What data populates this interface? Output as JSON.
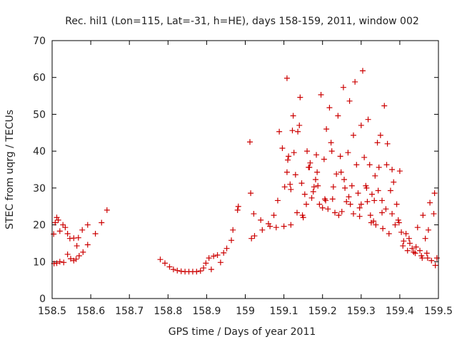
{
  "chart_data": {
    "type": "scatter",
    "title": "Rec. hil1 (Lon=115, Lat=-31, h=HE), days 158-159, 2011, window 002",
    "xlabel": "GPS time / Days of year 2011",
    "ylabel": "STEC from uqrg / TECUs",
    "xlim": [
      158.5,
      159.5
    ],
    "ylim": [
      0,
      70
    ],
    "x_ticks": [
      "158.5",
      "158.6",
      "158.7",
      "158.8",
      "158.9",
      "159",
      "159.1",
      "159.2",
      "159.3",
      "159.4",
      "159.5"
    ],
    "y_ticks": [
      "0",
      "10",
      "20",
      "30",
      "40",
      "50",
      "60",
      "70"
    ],
    "grid": false,
    "marker": "+",
    "color": "#cc0000",
    "points": [
      [
        158.504,
        17.5
      ],
      [
        158.508,
        20.6
      ],
      [
        158.512,
        22.0
      ],
      [
        158.516,
        21.3
      ],
      [
        158.52,
        18.3
      ],
      [
        158.528,
        20.0
      ],
      [
        158.534,
        19.3
      ],
      [
        158.54,
        17.6
      ],
      [
        158.546,
        16.3
      ],
      [
        158.556,
        16.4
      ],
      [
        158.564,
        14.3
      ],
      [
        158.568,
        16.5
      ],
      [
        158.578,
        18.6
      ],
      [
        158.592,
        20.0
      ],
      [
        158.612,
        17.6
      ],
      [
        158.628,
        20.6
      ],
      [
        158.642,
        24.0
      ],
      [
        158.505,
        9.5
      ],
      [
        158.512,
        9.6
      ],
      [
        158.52,
        10.0
      ],
      [
        158.53,
        9.8
      ],
      [
        158.54,
        12.0
      ],
      [
        158.548,
        10.8
      ],
      [
        158.556,
        10.3
      ],
      [
        158.562,
        10.7
      ],
      [
        158.57,
        11.6
      ],
      [
        158.58,
        12.6
      ],
      [
        158.592,
        14.6
      ],
      [
        158.78,
        10.6
      ],
      [
        158.792,
        9.6
      ],
      [
        158.804,
        8.6
      ],
      [
        158.814,
        7.9
      ],
      [
        158.824,
        7.6
      ],
      [
        158.834,
        7.4
      ],
      [
        158.844,
        7.3
      ],
      [
        158.854,
        7.3
      ],
      [
        158.864,
        7.3
      ],
      [
        158.874,
        7.3
      ],
      [
        158.884,
        7.5
      ],
      [
        158.892,
        8.3
      ],
      [
        158.898,
        9.6
      ],
      [
        158.906,
        11.0
      ],
      [
        158.912,
        7.9
      ],
      [
        158.918,
        11.5
      ],
      [
        158.928,
        11.8
      ],
      [
        158.936,
        9.8
      ],
      [
        158.944,
        12.4
      ],
      [
        158.952,
        13.6
      ],
      [
        158.964,
        15.8
      ],
      [
        158.968,
        18.6
      ],
      [
        158.98,
        24.0
      ],
      [
        158.982,
        25.0
      ],
      [
        159.012,
        42.5
      ],
      [
        159.014,
        28.6
      ],
      [
        159.016,
        16.3
      ],
      [
        159.022,
        23.0
      ],
      [
        159.024,
        17.0
      ],
      [
        159.04,
        21.3
      ],
      [
        159.044,
        18.6
      ],
      [
        159.06,
        20.3
      ],
      [
        159.064,
        19.6
      ],
      [
        159.074,
        22.6
      ],
      [
        159.08,
        19.3
      ],
      [
        159.084,
        26.6
      ],
      [
        159.088,
        45.3
      ],
      [
        159.096,
        40.8
      ],
      [
        159.1,
        19.6
      ],
      [
        159.108,
        59.8
      ],
      [
        159.11,
        37.6
      ],
      [
        159.112,
        38.6
      ],
      [
        159.116,
        31.0
      ],
      [
        159.118,
        20.0
      ],
      [
        159.122,
        45.6
      ],
      [
        159.124,
        49.6
      ],
      [
        159.126,
        39.6
      ],
      [
        159.13,
        33.6
      ],
      [
        159.136,
        45.3
      ],
      [
        159.14,
        47.0
      ],
      [
        159.142,
        54.6
      ],
      [
        159.146,
        31.3
      ],
      [
        159.148,
        22.6
      ],
      [
        159.154,
        28.3
      ],
      [
        159.158,
        25.6
      ],
      [
        159.16,
        40.0
      ],
      [
        159.164,
        35.6
      ],
      [
        159.168,
        36.8
      ],
      [
        159.172,
        27.3
      ],
      [
        159.176,
        29.0
      ],
      [
        159.178,
        30.3
      ],
      [
        159.182,
        32.3
      ],
      [
        159.186,
        34.3
      ],
      [
        159.188,
        30.6
      ],
      [
        159.192,
        25.6
      ],
      [
        159.196,
        55.3
      ],
      [
        159.2,
        24.6
      ],
      [
        159.204,
        37.8
      ],
      [
        159.206,
        27.0
      ],
      [
        159.21,
        46.0
      ],
      [
        159.214,
        24.3
      ],
      [
        159.218,
        51.8
      ],
      [
        159.222,
        42.3
      ],
      [
        159.224,
        40.0
      ],
      [
        159.228,
        30.3
      ],
      [
        159.232,
        23.3
      ],
      [
        159.236,
        33.8
      ],
      [
        159.24,
        49.6
      ],
      [
        159.242,
        22.6
      ],
      [
        159.248,
        34.3
      ],
      [
        159.25,
        23.6
      ],
      [
        159.254,
        57.3
      ],
      [
        159.258,
        30.0
      ],
      [
        159.262,
        26.3
      ],
      [
        159.266,
        39.6
      ],
      [
        159.27,
        53.6
      ],
      [
        159.272,
        25.6
      ],
      [
        159.276,
        30.6
      ],
      [
        159.28,
        44.3
      ],
      [
        159.284,
        58.8
      ],
      [
        159.288,
        36.3
      ],
      [
        159.292,
        28.6
      ],
      [
        159.296,
        24.6
      ],
      [
        159.3,
        47.0
      ],
      [
        159.304,
        61.8
      ],
      [
        159.308,
        38.3
      ],
      [
        159.312,
        30.6
      ],
      [
        159.316,
        26.3
      ],
      [
        159.318,
        48.6
      ],
      [
        159.322,
        36.3
      ],
      [
        159.324,
        22.6
      ],
      [
        159.328,
        28.3
      ],
      [
        159.332,
        21.0
      ],
      [
        159.336,
        33.3
      ],
      [
        159.338,
        20.0
      ],
      [
        159.342,
        42.3
      ],
      [
        159.346,
        35.6
      ],
      [
        159.35,
        44.3
      ],
      [
        159.354,
        26.6
      ],
      [
        159.356,
        19.0
      ],
      [
        159.36,
        52.3
      ],
      [
        159.364,
        24.3
      ],
      [
        159.368,
        42.0
      ],
      [
        159.372,
        17.6
      ],
      [
        159.376,
        29.3
      ],
      [
        159.38,
        35.0
      ],
      [
        159.384,
        31.6
      ],
      [
        159.388,
        20.0
      ],
      [
        159.392,
        25.6
      ],
      [
        159.396,
        21.3
      ],
      [
        159.4,
        34.6
      ],
      [
        159.404,
        18.0
      ],
      [
        159.41,
        15.6
      ],
      [
        159.416,
        17.6
      ],
      [
        159.42,
        13.0
      ],
      [
        159.426,
        15.0
      ],
      [
        159.432,
        13.6
      ],
      [
        159.436,
        12.6
      ],
      [
        159.442,
        14.0
      ],
      [
        159.446,
        19.3
      ],
      [
        159.452,
        13.0
      ],
      [
        159.456,
        11.6
      ],
      [
        159.46,
        22.6
      ],
      [
        159.466,
        16.3
      ],
      [
        159.47,
        12.3
      ],
      [
        159.474,
        18.6
      ],
      [
        159.478,
        26.0
      ],
      [
        159.482,
        10.3
      ],
      [
        159.488,
        23.0
      ],
      [
        159.49,
        28.6
      ],
      [
        159.492,
        9.0
      ],
      [
        159.496,
        11.0
      ],
      [
        159.102,
        30.3
      ],
      [
        159.108,
        34.3
      ],
      [
        159.118,
        29.6
      ],
      [
        159.134,
        23.3
      ],
      [
        159.15,
        22.0
      ],
      [
        159.166,
        35.6
      ],
      [
        159.184,
        39.0
      ],
      [
        159.208,
        26.6
      ],
      [
        159.226,
        27.0
      ],
      [
        159.246,
        38.6
      ],
      [
        159.256,
        32.3
      ],
      [
        159.268,
        27.6
      ],
      [
        159.28,
        23.0
      ],
      [
        159.296,
        22.3
      ],
      [
        159.3,
        25.6
      ],
      [
        159.314,
        30.0
      ],
      [
        159.326,
        20.6
      ],
      [
        159.334,
        26.6
      ],
      [
        159.344,
        29.3
      ],
      [
        159.354,
        23.3
      ],
      [
        159.366,
        36.3
      ],
      [
        159.38,
        23.0
      ],
      [
        159.398,
        20.6
      ],
      [
        159.408,
        14.3
      ],
      [
        159.424,
        16.3
      ],
      [
        159.44,
        12.3
      ],
      [
        159.458,
        11.0
      ],
      [
        159.472,
        11.0
      ]
    ]
  }
}
